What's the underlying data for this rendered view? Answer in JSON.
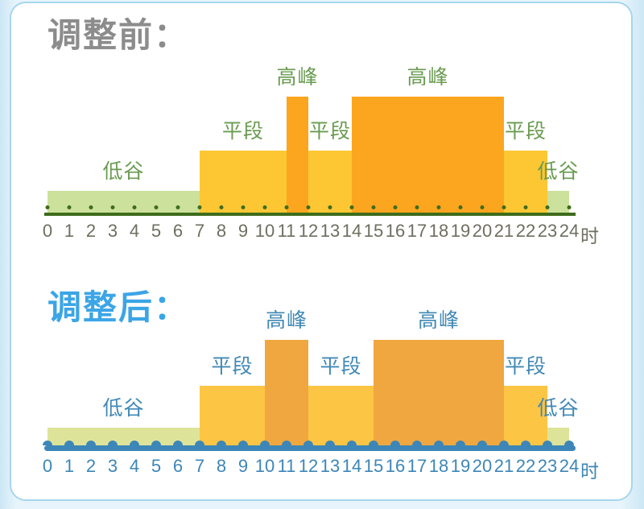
{
  "page": {
    "background_color": "#d8ecf8",
    "card_background": "#ffffff",
    "card_border_color": "#a6d6ee"
  },
  "chart_data": [
    {
      "type": "bar",
      "title": "调整前：",
      "title_color": "#8c8c8c",
      "x_range": [
        0,
        24
      ],
      "unit_label": "时",
      "tick_labels": [
        "0",
        "1",
        "2",
        "3",
        "4",
        "5",
        "6",
        "7",
        "8",
        "9",
        "10",
        "11",
        "12",
        "13",
        "14",
        "15",
        "16",
        "17",
        "18",
        "19",
        "20",
        "21",
        "22",
        "23",
        "24"
      ],
      "segments": [
        {
          "label": "低谷",
          "level": "valley",
          "start": 0,
          "end": 7
        },
        {
          "label": "平段",
          "level": "flat",
          "start": 7,
          "end": 11
        },
        {
          "label": "高峰",
          "level": "peak",
          "start": 11,
          "end": 12
        },
        {
          "label": "平段",
          "level": "flat",
          "start": 12,
          "end": 14
        },
        {
          "label": "高峰",
          "level": "peak",
          "start": 14,
          "end": 21
        },
        {
          "label": "平段",
          "level": "flat",
          "start": 21,
          "end": 23
        },
        {
          "label": "低谷",
          "level": "valley",
          "start": 23,
          "end": 24
        }
      ],
      "colors": {
        "valley": "#cbe19c",
        "flat": "#fdc733",
        "peak": "#fca51f"
      },
      "label_color": "#6a9b51",
      "axis_color": "#3e6c1b",
      "number_color": "#6e6e60"
    },
    {
      "type": "bar",
      "title": "调整后：",
      "title_color": "#3ba5e6",
      "x_range": [
        0,
        24
      ],
      "unit_label": "时",
      "tick_labels": [
        "0",
        "1",
        "2",
        "3",
        "4",
        "5",
        "6",
        "7",
        "8",
        "9",
        "10",
        "11",
        "12",
        "13",
        "14",
        "15",
        "16",
        "17",
        "18",
        "19",
        "20",
        "21",
        "22",
        "23",
        "24"
      ],
      "segments": [
        {
          "label": "低谷",
          "level": "valley",
          "start": 0,
          "end": 7
        },
        {
          "label": "平段",
          "level": "flat",
          "start": 7,
          "end": 10
        },
        {
          "label": "高峰",
          "level": "peak",
          "start": 10,
          "end": 12
        },
        {
          "label": "平段",
          "level": "flat",
          "start": 12,
          "end": 15
        },
        {
          "label": "高峰",
          "level": "peak",
          "start": 15,
          "end": 21
        },
        {
          "label": "平段",
          "level": "flat",
          "start": 21,
          "end": 23
        },
        {
          "label": "低谷",
          "level": "valley",
          "start": 23,
          "end": 24
        }
      ],
      "colors": {
        "valley": "#dde49a",
        "flat": "#fcc544",
        "peak": "#f1a73f"
      },
      "label_color": "#4189b5",
      "axis_color": "#3d86b8",
      "number_color": "#3d86b8"
    }
  ]
}
